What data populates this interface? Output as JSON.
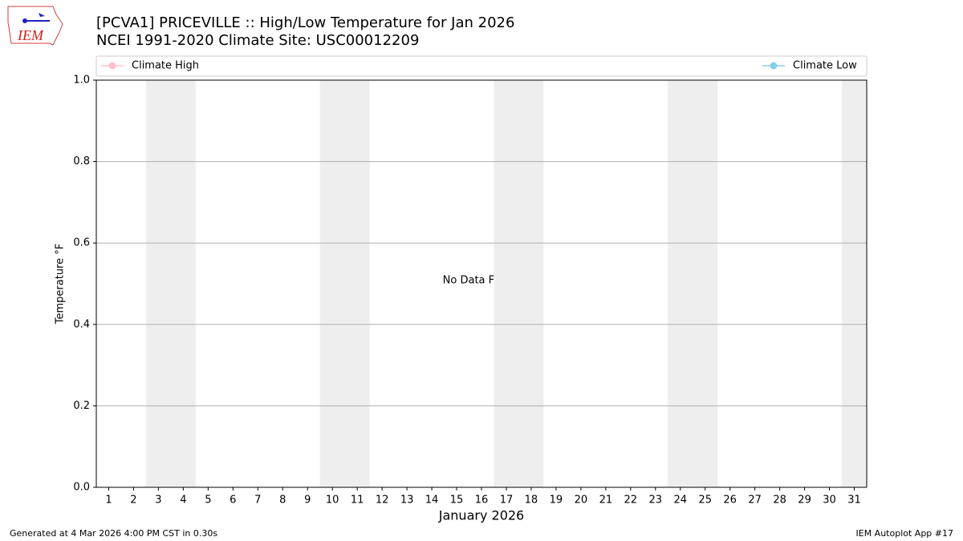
{
  "chart_data": {
    "type": "line",
    "title": "[PCVA1] PRICEVILLE :: High/Low Temperature for Jan 2026",
    "subtitle": "NCEI 1991-2020 Climate Site: USC00012209",
    "xlabel": "January 2026",
    "ylabel": "Temperature °F",
    "annotation": "No Data Found",
    "logo_text": "IEM",
    "footer_left": "Generated at 4 Mar 2026 4:00 PM CST in 0.30s",
    "footer_right": "IEM Autoplot App #17",
    "x": [
      1,
      2,
      3,
      4,
      5,
      6,
      7,
      8,
      9,
      10,
      11,
      12,
      13,
      14,
      15,
      16,
      17,
      18,
      19,
      20,
      21,
      22,
      23,
      24,
      25,
      26,
      27,
      28,
      29,
      30,
      31
    ],
    "series": [
      {
        "name": "Climate High",
        "color": "#ffc0cb",
        "values": [
          null,
          null,
          null,
          null,
          null,
          null,
          null,
          null,
          null,
          null,
          null,
          null,
          null,
          null,
          null,
          null,
          null,
          null,
          null,
          null,
          null,
          null,
          null,
          null,
          null,
          null,
          null,
          null,
          null,
          null,
          null
        ]
      },
      {
        "name": "Climate Low",
        "color": "#87ceeb",
        "values": [
          null,
          null,
          null,
          null,
          null,
          null,
          null,
          null,
          null,
          null,
          null,
          null,
          null,
          null,
          null,
          null,
          null,
          null,
          null,
          null,
          null,
          null,
          null,
          null,
          null,
          null,
          null,
          null,
          null,
          null,
          null
        ]
      }
    ],
    "xlim": [
      0.5,
      31.5
    ],
    "xticks": [
      1,
      2,
      3,
      4,
      5,
      6,
      7,
      8,
      9,
      10,
      11,
      12,
      13,
      14,
      15,
      16,
      17,
      18,
      19,
      20,
      21,
      22,
      23,
      24,
      25,
      26,
      27,
      28,
      29,
      30,
      31
    ],
    "ylim": [
      0,
      1
    ],
    "yticks": [
      {
        "value": 0,
        "label": "0.0"
      },
      {
        "value": 0.2,
        "label": "0.2"
      },
      {
        "value": 0.4,
        "label": "0.4"
      },
      {
        "value": 0.6,
        "label": "0.6"
      },
      {
        "value": 0.8,
        "label": "0.8"
      },
      {
        "value": 1,
        "label": "1.0"
      }
    ],
    "shaded_ranges": [
      [
        2.5,
        4.5
      ],
      [
        9.5,
        11.5
      ],
      [
        16.5,
        18.5
      ],
      [
        23.5,
        25.5
      ],
      [
        30.5,
        31.5
      ]
    ],
    "shade_color": "#eeeeee",
    "grid": true
  }
}
